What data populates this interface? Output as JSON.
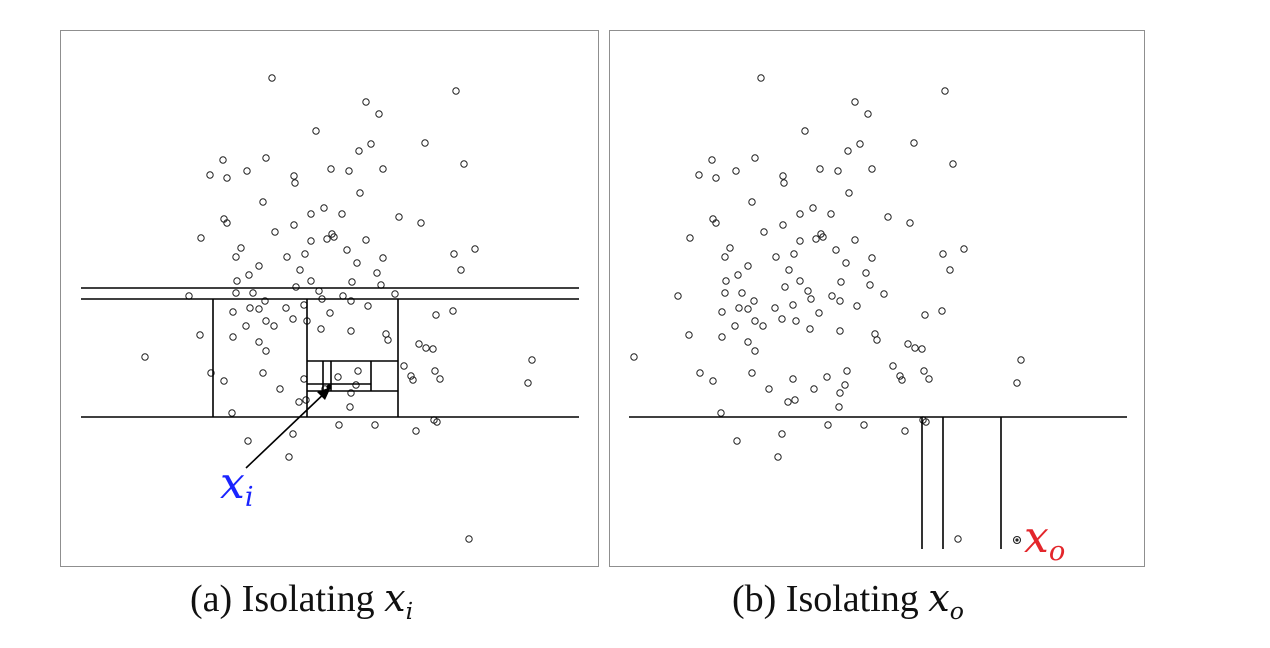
{
  "figure": {
    "panel_a": {
      "caption_prefix": "(a) Isolating",
      "caption_var": "x",
      "caption_sub": "i",
      "point_label_var": "x",
      "point_label_sub": "i",
      "point_label_color": "#1a24ff"
    },
    "panel_b": {
      "caption_prefix": "(b) Isolating",
      "caption_var": "x",
      "caption_sub": "o",
      "point_label_var": "x",
      "point_label_sub": "o",
      "point_label_color": "#e3262b"
    },
    "marker_style": "hollow-circle",
    "line_color": "#000000"
  }
}
